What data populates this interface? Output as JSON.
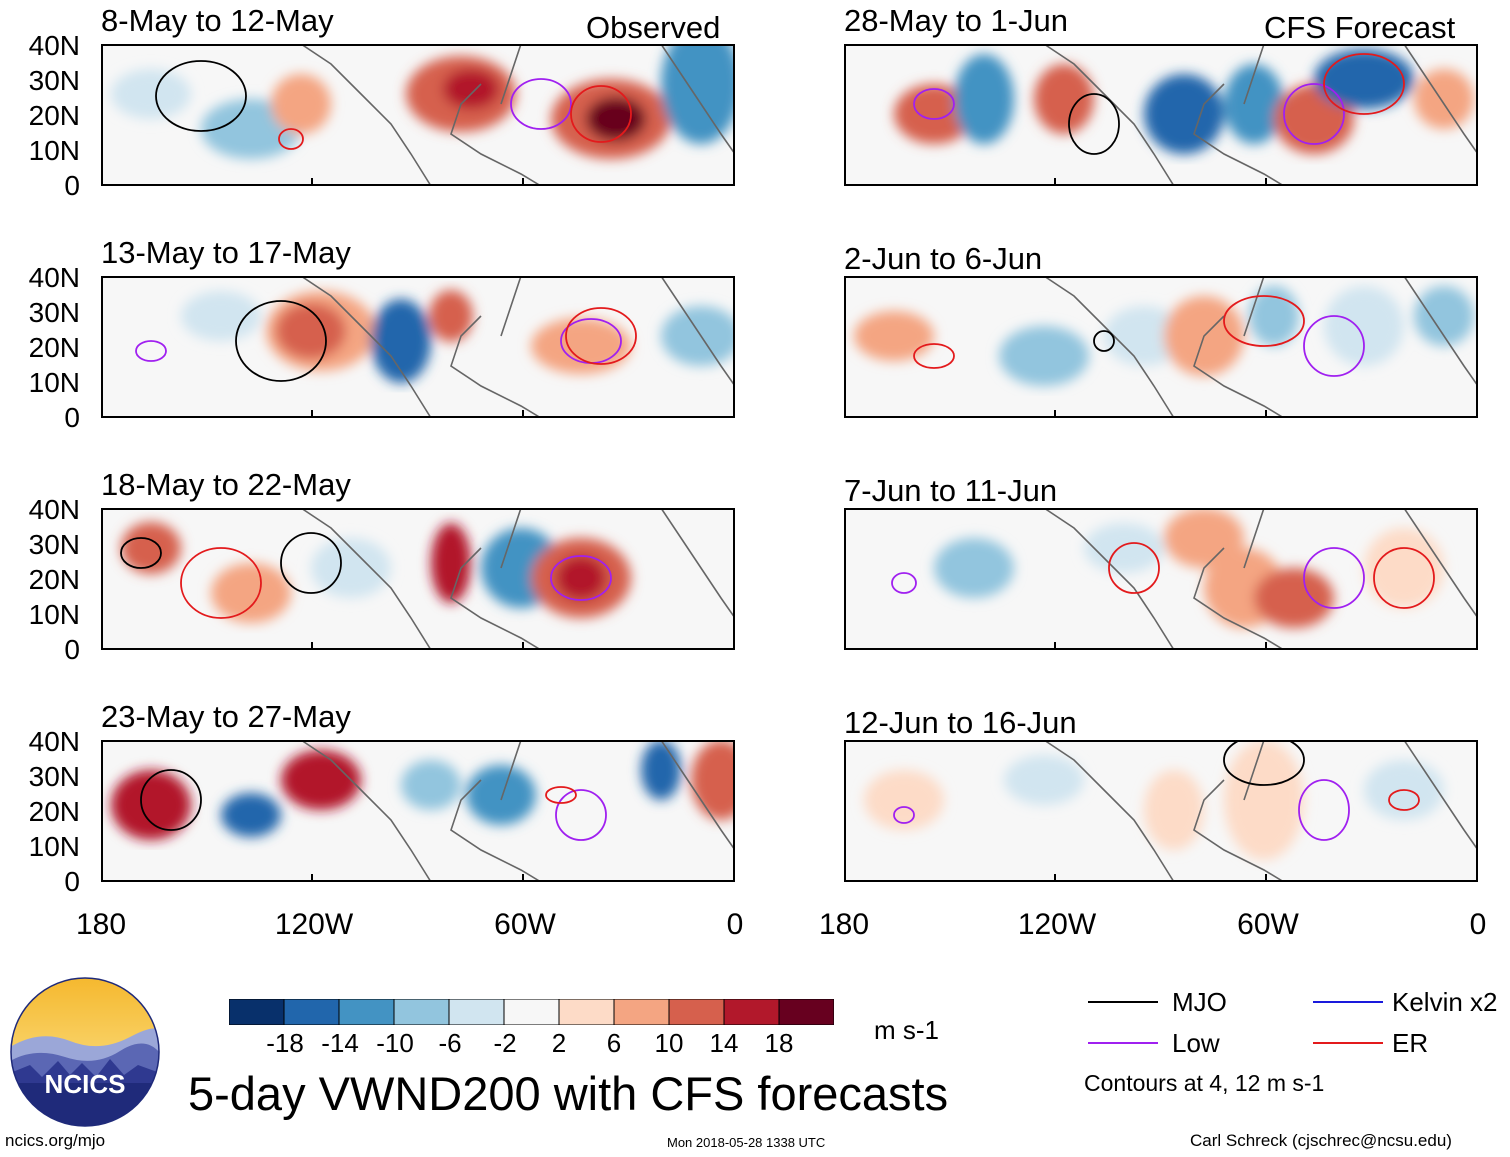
{
  "figure": {
    "title": "5-day VWND200 with CFS forecasts",
    "observed_label": "Observed",
    "forecast_label": "CFS Forecast",
    "units": "m s-1",
    "site": "ncics.org/mjo",
    "timestamp": "Mon 2018-05-28 1338 UTC",
    "author": "Carl Schreck (cjschrec@ncsu.edu)",
    "logo_text": "NCICS"
  },
  "panels": {
    "observed": [
      "8-May to 12-May",
      "13-May to 17-May",
      "18-May to 22-May",
      "23-May to 27-May"
    ],
    "forecast": [
      "28-May to 1-Jun",
      "2-Jun to 6-Jun",
      "7-Jun to 11-Jun",
      "12-Jun to 16-Jun"
    ]
  },
  "axes": {
    "lat_labels": [
      "40N",
      "30N",
      "20N",
      "10N",
      "0"
    ],
    "lon_labels": [
      "180",
      "120W",
      "60W",
      "0"
    ]
  },
  "colorbar": {
    "labels": [
      "-18",
      "-14",
      "-10",
      "-6",
      "-2",
      "2",
      "6",
      "10",
      "14",
      "18"
    ],
    "colors": [
      "#08306b",
      "#2166ac",
      "#4393c3",
      "#92c5de",
      "#d1e5f0",
      "#f7f7f7",
      "#fddbc7",
      "#f4a582",
      "#d6604d",
      "#b2182b",
      "#67001f"
    ]
  },
  "legend": {
    "items": [
      {
        "label": "MJO",
        "color": "#000000"
      },
      {
        "label": "Kelvin x2",
        "color": "#1a1adc"
      },
      {
        "label": "Low",
        "color": "#a020f0"
      },
      {
        "label": "ER",
        "color": "#e31a1c"
      }
    ],
    "note": "Contours at 4, 12 m s-1"
  }
}
